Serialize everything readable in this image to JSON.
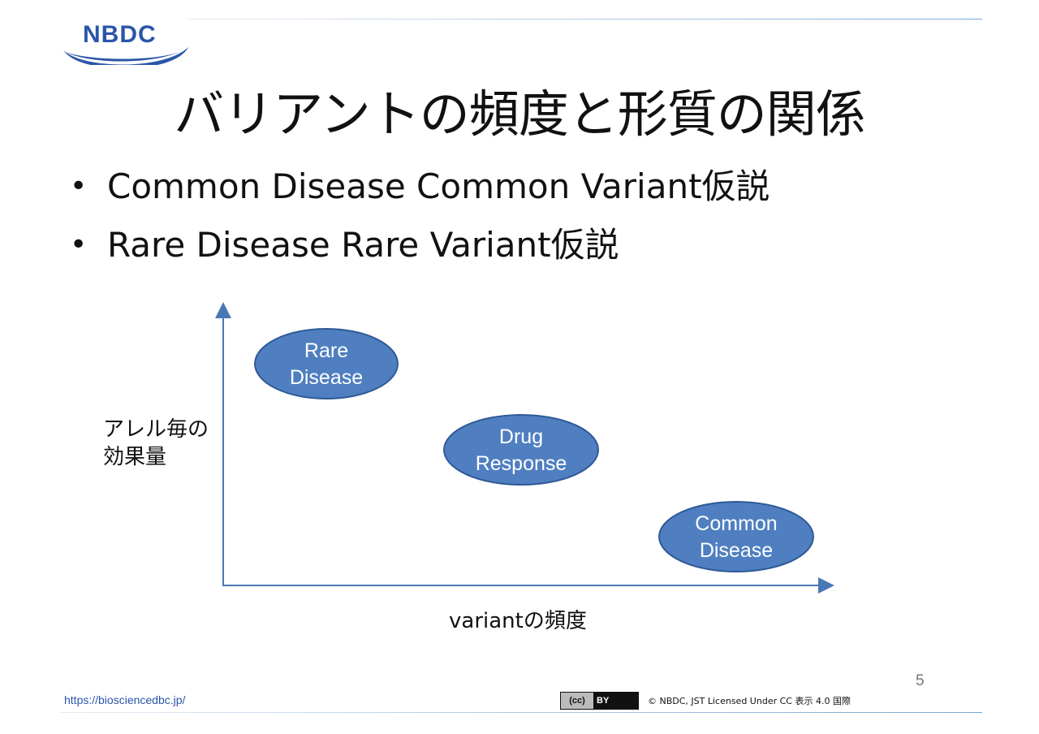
{
  "logo": {
    "text": "NBDC",
    "color": "#2a56a8"
  },
  "title": "バリアントの頻度と形質の関係",
  "bullets": [
    "Common Disease Common Variant仮説",
    "Rare Disease Rare Variant仮説"
  ],
  "diagram": {
    "y_axis_label_line1": "アレル毎の",
    "y_axis_label_line2": "効果量",
    "x_axis_label": "variantの頻度",
    "ellipses": [
      {
        "line1": "Rare",
        "line2": "Disease"
      },
      {
        "line1": "Drug",
        "line2": "Response"
      },
      {
        "line1": "Common",
        "line2": "Disease"
      }
    ],
    "ellipse_fill": "#4f7fc0",
    "ellipse_stroke": "#2f5a96",
    "axis_color": "#4a78b5"
  },
  "footer": {
    "page_number": "5",
    "url": "https://biosciencedbc.jp/",
    "license_badge_cc": "(cc)",
    "license_badge_by": "BY",
    "copyright": "© NBDC, JST    Licensed Under CC 表示 4.0 国際"
  }
}
